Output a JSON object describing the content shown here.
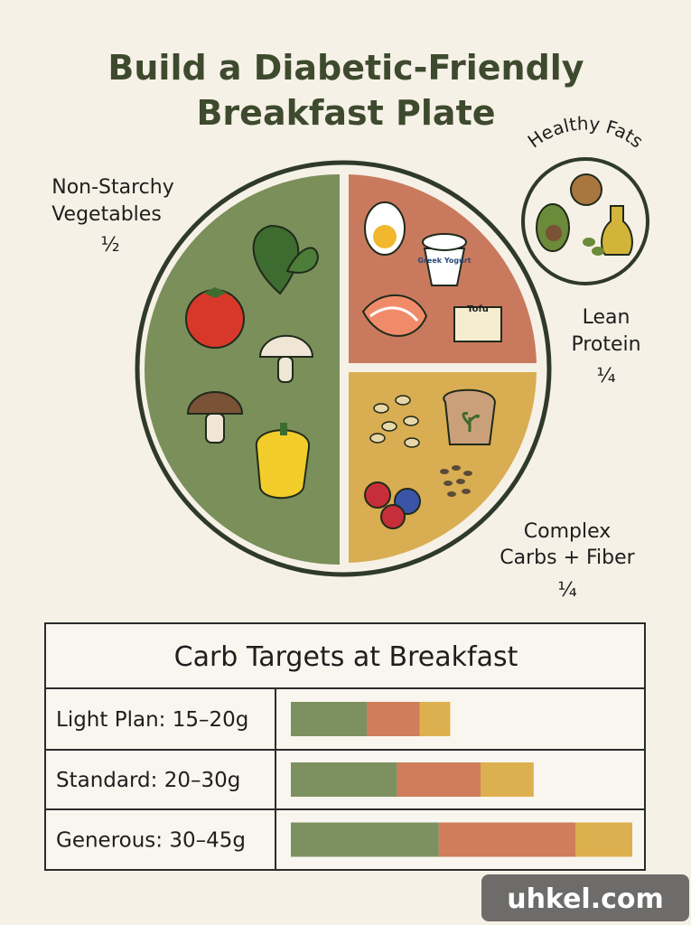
{
  "header": {
    "title_lines": [
      "Build a Diabetic-Friendly",
      "Breakfast Plate"
    ]
  },
  "plate": {
    "sections": [
      {
        "label_lines": [
          "Non-Starchy",
          "Vegetables"
        ],
        "fraction": "½"
      },
      {
        "label_lines": [
          "Lean",
          "Protein"
        ],
        "fraction": "¼"
      },
      {
        "label_lines": [
          "Complex",
          "Carbs + Fiber"
        ],
        "fraction": "¼"
      }
    ],
    "item_labels": {
      "yogurt": "Greek Yogurt",
      "tofu": "Tofu"
    },
    "healthy_fats": "Healthy Fats"
  },
  "table": {
    "title": "Carb Targets at Breakfast",
    "rows": [
      {
        "label": "Light Plan: 15–20g",
        "segments": [
          10,
          7,
          4
        ]
      },
      {
        "label": "Standard: 20–30g",
        "segments": [
          14,
          11,
          7
        ]
      },
      {
        "label": "Generous: 30–45g",
        "segments": [
          19.5,
          18,
          7.5
        ]
      }
    ],
    "segment_colors": [
      "#7d9160",
      "#cf7d5b",
      "#ddb04f"
    ]
  },
  "watermark": "uhkel.com"
}
